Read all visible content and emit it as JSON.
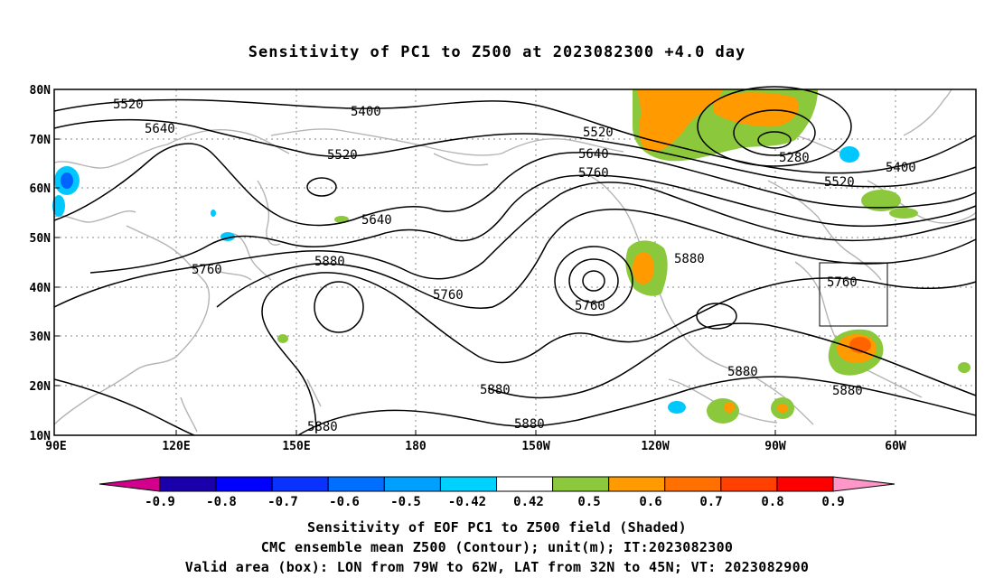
{
  "title": "Sensitivity of PC1 to Z500 at 2023082300 +4.0 day",
  "map": {
    "lat_labels": [
      "80N",
      "70N",
      "60N",
      "50N",
      "40N",
      "30N",
      "20N",
      "10N"
    ],
    "lon_labels": [
      "90E",
      "120E",
      "150E",
      "180",
      "150W",
      "120W",
      "90W",
      "60W"
    ],
    "contour_labels": [
      "5520",
      "5400",
      "5640",
      "5520",
      "5640",
      "5520",
      "5640",
      "5760",
      "5280",
      "5400",
      "5520",
      "5760",
      "5880",
      "5880",
      "5760",
      "5760",
      "5760",
      "5880",
      "5880",
      "5880",
      "5880"
    ],
    "valid_box": {
      "lon_min": "79W",
      "lon_max": "62W",
      "lat_min": "32N",
      "lat_max": "45N"
    },
    "colors": {
      "contour": "#000000",
      "coastline": "#b4b4b4",
      "grid": "#888888",
      "shade_green": "#8cc83c",
      "shade_orange": "#ff9a00",
      "shade_dark_orange": "#ff6400",
      "shade_light_blue": "#00c8ff",
      "shade_blue": "#0064ff"
    }
  },
  "colorbar": {
    "levels": [
      "-0.9",
      "-0.8",
      "-0.7",
      "-0.6",
      "-0.5",
      "-0.42",
      "0.42",
      "0.5",
      "0.6",
      "0.7",
      "0.8",
      "0.9"
    ],
    "colors": [
      "#1a00aa",
      "#0000ff",
      "#0a32ff",
      "#006eff",
      "#00a0ff",
      "#00d2ff",
      "#ffffff",
      "#8cc83c",
      "#ff9a00",
      "#ff7000",
      "#ff4000",
      "#ff0000"
    ],
    "low_end_color": "#d2008c",
    "high_end_color": "#ff96c8"
  },
  "caption": {
    "line1": "Sensitivity of EOF PC1 to Z500 field (Shaded)",
    "line2": "CMC ensemble mean Z500 (Contour); unit(m); IT:2023082300",
    "line3": "Valid area (box): LON from 79W to 62W, LAT from 32N to 45N; VT: 2023082900"
  }
}
